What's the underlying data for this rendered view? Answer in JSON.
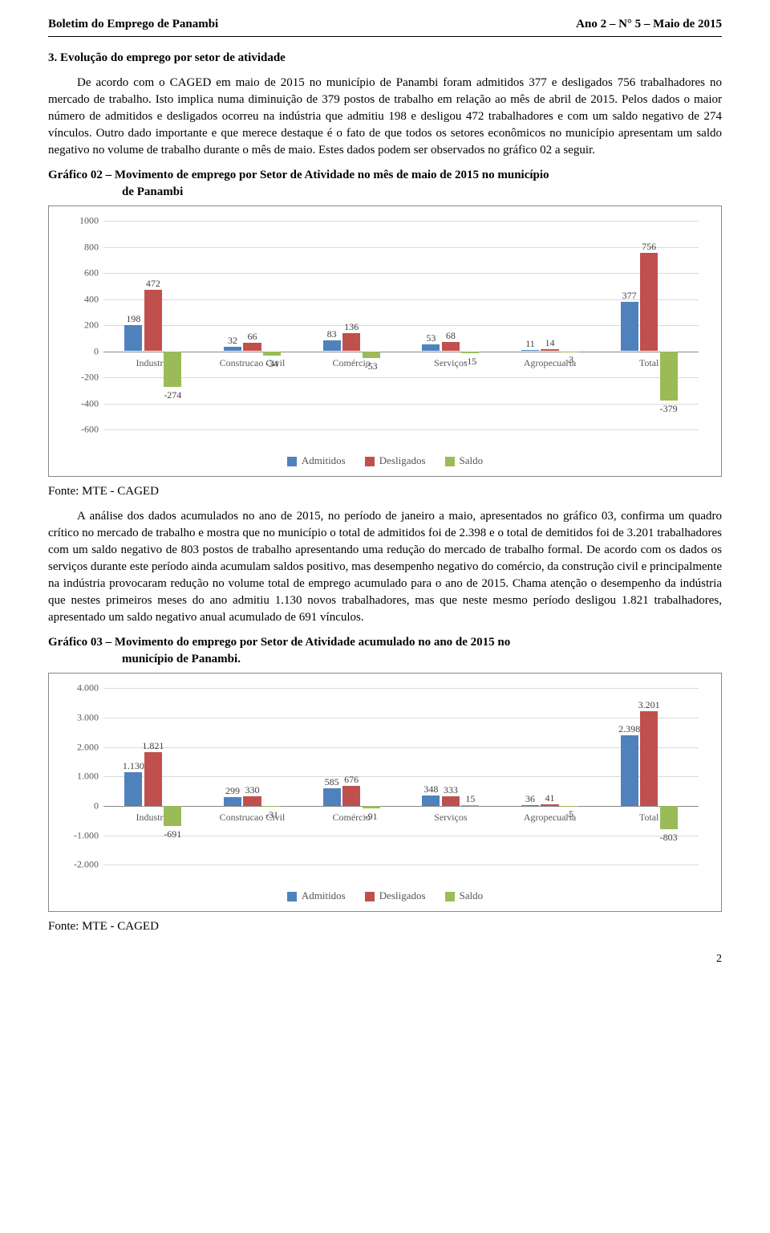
{
  "header": {
    "left": "Boletim do Emprego de Panambi",
    "right": "Ano 2 – N° 5 – Maio de 2015"
  },
  "section_title": "3. Evolução do emprego por setor de atividade",
  "para1": "De acordo com o CAGED em maio de 2015 no município de Panambi foram admitidos 377 e desligados 756 trabalhadores no mercado de trabalho. Isto implica numa diminuição de 379 postos de trabalho em relação ao mês de abril de 2015. Pelos dados o maior número de admitidos e desligados ocorreu na indústria que admitiu 198 e desligou 472 trabalhadores e com um saldo negativo de 274 vínculos. Outro dado importante e que merece destaque é o fato de que todos os setores econômicos no município apresentam um saldo negativo no volume de trabalho durante o mês de maio. Estes dados podem ser observados no gráfico 02 a seguir.",
  "g2_title_l1": "Gráfico 02 – Movimento de emprego por Setor de Atividade no mês de maio de 2015 no município",
  "g2_title_l2": "de Panambi",
  "source": "Fonte: MTE - CAGED",
  "para2": "A análise dos dados acumulados no ano de 2015, no período de janeiro a maio, apresentados no gráfico 03, confirma um quadro crítico no mercado de trabalho e mostra que no município o total de admitidos foi de 2.398 e o total de demitidos foi de 3.201 trabalhadores com um saldo negativo de 803 postos de trabalho apresentando uma redução do mercado de trabalho formal. De acordo com os dados os serviços durante este período ainda acumulam saldos positivo, mas desempenho negativo do comércio, da construção civil e principalmente na indústria provocaram redução no volume total de emprego acumulado para o ano de 2015. Chama atenção o desempenho da indústria que nestes primeiros meses do ano admitiu 1.130 novos trabalhadores, mas que neste mesmo período desligou 1.821 trabalhadores, apresentado um saldo negativo anual acumulado de 691 vínculos.",
  "g3_title_l1": "Gráfico 03 – Movimento do emprego por Setor de Atividade acumulado no ano de 2015 no",
  "g3_title_l2": "município de Panambi.",
  "page_num": "2",
  "legend": {
    "a": "Admitidos",
    "d": "Desligados",
    "s": "Saldo"
  },
  "colors": {
    "admitidos": "#4f81bd",
    "desligados": "#c0504d",
    "saldo": "#9bbb59",
    "grid": "#d9d9d9",
    "axis": "#888888",
    "text": "#404040"
  },
  "chart2": {
    "type": "bar",
    "y_min": -600,
    "y_max": 1000,
    "y_step": 200,
    "categories": [
      "Industria",
      "Construcao Civil",
      "Comércio",
      "Serviços",
      "Agropecuaria",
      "Total"
    ],
    "series": {
      "Admitidos": [
        198,
        32,
        83,
        53,
        11,
        377
      ],
      "Desligados": [
        472,
        66,
        136,
        68,
        14,
        756
      ],
      "Saldo": [
        -274,
        -34,
        -53,
        -15,
        -3,
        -379
      ]
    },
    "labels": {
      "Admitidos": [
        "198",
        "32",
        "83",
        "53",
        "11",
        "377"
      ],
      "Desligados": [
        "472",
        "66",
        "136",
        "68",
        "14",
        "756"
      ],
      "Saldo": [
        "-274",
        "-34",
        "-53",
        "-15",
        "-3",
        "-379"
      ]
    }
  },
  "chart3": {
    "type": "bar",
    "y_min": -2000,
    "y_max": 4000,
    "y_step": 1000,
    "y_tick_labels": [
      "-2.000",
      "-1.000",
      "0",
      "1.000",
      "2.000",
      "3.000",
      "4.000"
    ],
    "categories": [
      "Industria",
      "Construcao Civil",
      "Comércio",
      "Serviços",
      "Agropecuaria",
      "Total"
    ],
    "series": {
      "Admitidos": [
        1130,
        299,
        585,
        348,
        36,
        2398
      ],
      "Desligados": [
        1821,
        330,
        676,
        333,
        41,
        3201
      ],
      "Saldo": [
        -691,
        -31,
        -91,
        15,
        -5,
        -803
      ]
    },
    "labels": {
      "Admitidos": [
        "1.130",
        "299",
        "585",
        "348",
        "36",
        "2.398"
      ],
      "Desligados": [
        "1.821",
        "330",
        "676",
        "333",
        "41",
        "3.201"
      ],
      "Saldo": [
        "-691",
        "-31",
        "-91",
        "15",
        "-5",
        "-803"
      ]
    }
  }
}
